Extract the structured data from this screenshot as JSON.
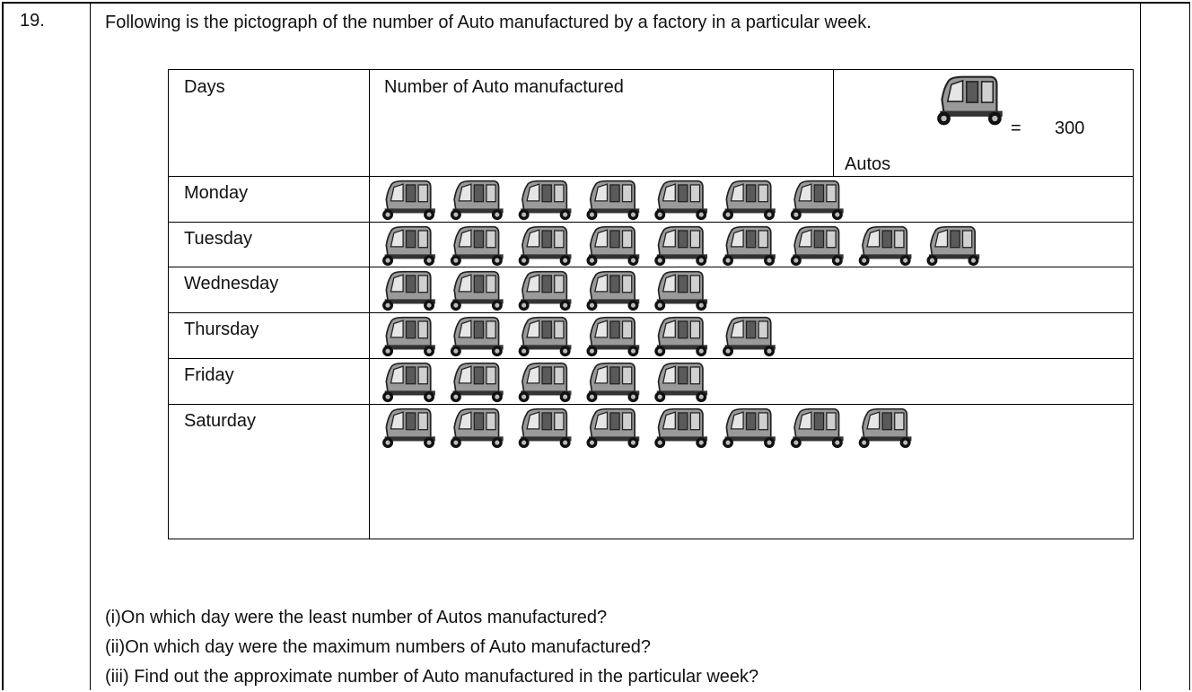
{
  "question": {
    "number": "19.",
    "text": "Following is the pictograph of the number of Auto manufactured by a factory in a particular week."
  },
  "table": {
    "headers": [
      "Days",
      "Number of Auto manufactured"
    ],
    "key": {
      "symbol": "=",
      "value": 300,
      "unit": "Autos"
    },
    "rows": [
      {
        "day": "Monday",
        "icons": 7
      },
      {
        "day": "Tuesday",
        "icons": 9
      },
      {
        "day": "Wednesday",
        "icons": 5
      },
      {
        "day": "Thursday",
        "icons": 6
      },
      {
        "day": "Friday",
        "icons": 5
      },
      {
        "day": "Saturday",
        "icons": 8
      }
    ]
  },
  "questions": [
    "(i)On which day were the least number of Autos manufactured?",
    "(ii)On which day were the maximum numbers of Auto manufactured?",
    "(iii) Find out the approximate number of Auto manufactured in the particular week?"
  ]
}
